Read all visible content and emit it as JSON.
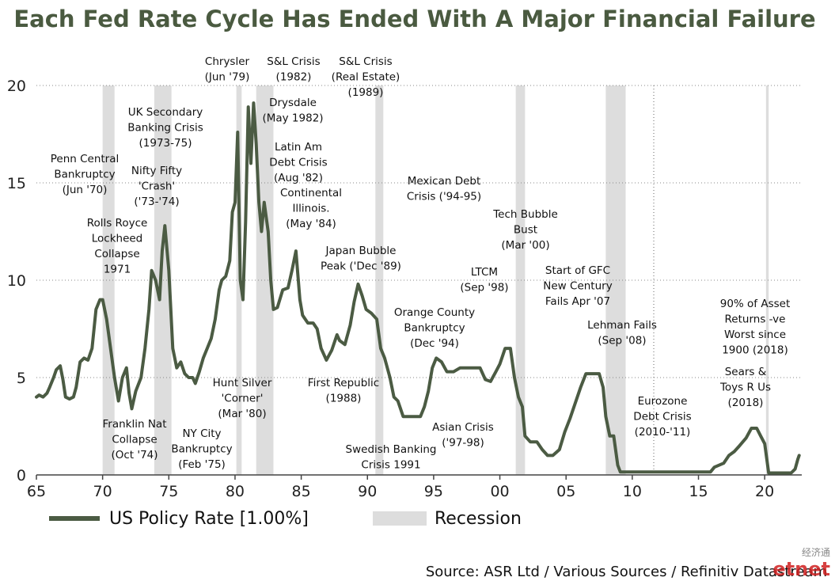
{
  "chart_data": {
    "type": "line",
    "title": "Each Fed Rate Cycle Has Ended With A Major Financial Failure",
    "ylim": [
      0,
      20
    ],
    "y_ticks": [
      "0",
      "5",
      "10",
      "15",
      "20"
    ],
    "xlim": [
      1965,
      2022.8
    ],
    "x_ticks": [
      {
        "label": "65",
        "x": 1965
      },
      {
        "label": "70",
        "x": 1970
      },
      {
        "label": "75",
        "x": 1975
      },
      {
        "label": "80",
        "x": 1980
      },
      {
        "label": "85",
        "x": 1985
      },
      {
        "label": "90",
        "x": 1990
      },
      {
        "label": "95",
        "x": 1995
      },
      {
        "label": "00",
        "x": 2000
      },
      {
        "label": "05",
        "x": 2005
      },
      {
        "label": "10",
        "x": 2010
      },
      {
        "label": "15",
        "x": 2015
      },
      {
        "label": "20",
        "x": 2020
      }
    ],
    "grid": "horizontal dotted",
    "line_color": "#4b5b43",
    "recession_color": "#dddddd",
    "series": [
      {
        "name": "US Policy Rate [1.00%]",
        "points": [
          [
            1965.0,
            4.0
          ],
          [
            1965.2,
            4.1
          ],
          [
            1965.5,
            4.0
          ],
          [
            1965.8,
            4.2
          ],
          [
            1966.0,
            4.5
          ],
          [
            1966.3,
            5.0
          ],
          [
            1966.5,
            5.4
          ],
          [
            1966.8,
            5.6
          ],
          [
            1967.0,
            4.9
          ],
          [
            1967.2,
            4.0
          ],
          [
            1967.5,
            3.9
          ],
          [
            1967.8,
            4.0
          ],
          [
            1968.0,
            4.5
          ],
          [
            1968.3,
            5.8
          ],
          [
            1968.6,
            6.0
          ],
          [
            1968.9,
            5.9
          ],
          [
            1969.2,
            6.5
          ],
          [
            1969.5,
            8.5
          ],
          [
            1969.8,
            9.0
          ],
          [
            1970.0,
            9.0
          ],
          [
            1970.3,
            8.0
          ],
          [
            1970.6,
            6.5
          ],
          [
            1970.9,
            5.0
          ],
          [
            1971.2,
            3.8
          ],
          [
            1971.5,
            5.0
          ],
          [
            1971.8,
            5.5
          ],
          [
            1972.0,
            4.2
          ],
          [
            1972.2,
            3.4
          ],
          [
            1972.5,
            4.3
          ],
          [
            1972.9,
            5.0
          ],
          [
            1973.2,
            6.5
          ],
          [
            1973.5,
            8.5
          ],
          [
            1973.7,
            10.5
          ],
          [
            1974.0,
            10.0
          ],
          [
            1974.3,
            9.0
          ],
          [
            1974.5,
            11.5
          ],
          [
            1974.7,
            12.8
          ],
          [
            1975.0,
            10.5
          ],
          [
            1975.3,
            6.5
          ],
          [
            1975.6,
            5.5
          ],
          [
            1975.9,
            5.8
          ],
          [
            1976.2,
            5.2
          ],
          [
            1976.5,
            5.0
          ],
          [
            1976.8,
            5.0
          ],
          [
            1977.0,
            4.7
          ],
          [
            1977.3,
            5.3
          ],
          [
            1977.6,
            6.0
          ],
          [
            1977.9,
            6.5
          ],
          [
            1978.2,
            7.0
          ],
          [
            1978.5,
            8.0
          ],
          [
            1978.8,
            9.5
          ],
          [
            1979.0,
            10.0
          ],
          [
            1979.3,
            10.2
          ],
          [
            1979.6,
            11.0
          ],
          [
            1979.8,
            13.5
          ],
          [
            1980.0,
            14.0
          ],
          [
            1980.2,
            17.6
          ],
          [
            1980.4,
            10.0
          ],
          [
            1980.6,
            9.0
          ],
          [
            1980.8,
            13.0
          ],
          [
            1981.0,
            18.9
          ],
          [
            1981.2,
            16.0
          ],
          [
            1981.4,
            19.1
          ],
          [
            1981.6,
            17.0
          ],
          [
            1981.8,
            14.0
          ],
          [
            1982.0,
            12.5
          ],
          [
            1982.2,
            14.0
          ],
          [
            1982.5,
            12.5
          ],
          [
            1982.7,
            10.0
          ],
          [
            1982.9,
            8.5
          ],
          [
            1983.2,
            8.6
          ],
          [
            1983.6,
            9.5
          ],
          [
            1984.0,
            9.6
          ],
          [
            1984.3,
            10.5
          ],
          [
            1984.6,
            11.5
          ],
          [
            1984.9,
            9.0
          ],
          [
            1985.1,
            8.2
          ],
          [
            1985.5,
            7.8
          ],
          [
            1985.9,
            7.8
          ],
          [
            1986.2,
            7.5
          ],
          [
            1986.5,
            6.5
          ],
          [
            1986.9,
            5.9
          ],
          [
            1987.3,
            6.4
          ],
          [
            1987.7,
            7.2
          ],
          [
            1987.9,
            6.9
          ],
          [
            1988.3,
            6.7
          ],
          [
            1988.7,
            7.7
          ],
          [
            1989.0,
            8.9
          ],
          [
            1989.3,
            9.8
          ],
          [
            1989.6,
            9.2
          ],
          [
            1989.9,
            8.5
          ],
          [
            1990.3,
            8.3
          ],
          [
            1990.7,
            8.0
          ],
          [
            1991.0,
            6.5
          ],
          [
            1991.3,
            6.0
          ],
          [
            1991.7,
            5.0
          ],
          [
            1992.0,
            4.0
          ],
          [
            1992.3,
            3.8
          ],
          [
            1992.7,
            3.0
          ],
          [
            1993.0,
            3.0
          ],
          [
            1993.5,
            3.0
          ],
          [
            1994.0,
            3.0
          ],
          [
            1994.3,
            3.5
          ],
          [
            1994.6,
            4.3
          ],
          [
            1994.9,
            5.5
          ],
          [
            1995.2,
            6.0
          ],
          [
            1995.6,
            5.8
          ],
          [
            1996.0,
            5.3
          ],
          [
            1996.5,
            5.3
          ],
          [
            1997.0,
            5.5
          ],
          [
            1997.5,
            5.5
          ],
          [
            1998.0,
            5.5
          ],
          [
            1998.5,
            5.5
          ],
          [
            1998.9,
            4.9
          ],
          [
            1999.3,
            4.8
          ],
          [
            1999.7,
            5.3
          ],
          [
            2000.0,
            5.7
          ],
          [
            2000.4,
            6.5
          ],
          [
            2000.8,
            6.5
          ],
          [
            2001.1,
            5.0
          ],
          [
            2001.4,
            4.0
          ],
          [
            2001.7,
            3.5
          ],
          [
            2001.9,
            2.0
          ],
          [
            2002.3,
            1.7
          ],
          [
            2002.8,
            1.7
          ],
          [
            2003.2,
            1.3
          ],
          [
            2003.6,
            1.0
          ],
          [
            2004.0,
            1.0
          ],
          [
            2004.5,
            1.3
          ],
          [
            2004.9,
            2.2
          ],
          [
            2005.3,
            2.9
          ],
          [
            2005.7,
            3.7
          ],
          [
            2006.1,
            4.5
          ],
          [
            2006.5,
            5.2
          ],
          [
            2007.0,
            5.2
          ],
          [
            2007.5,
            5.2
          ],
          [
            2007.8,
            4.5
          ],
          [
            2008.0,
            3.0
          ],
          [
            2008.3,
            2.0
          ],
          [
            2008.6,
            2.0
          ],
          [
            2008.9,
            0.5
          ],
          [
            2009.1,
            0.15
          ],
          [
            2010.0,
            0.15
          ],
          [
            2012.0,
            0.15
          ],
          [
            2014.0,
            0.15
          ],
          [
            2015.9,
            0.15
          ],
          [
            2016.2,
            0.4
          ],
          [
            2016.9,
            0.6
          ],
          [
            2017.3,
            1.0
          ],
          [
            2017.7,
            1.2
          ],
          [
            2018.1,
            1.5
          ],
          [
            2018.6,
            1.9
          ],
          [
            2019.0,
            2.4
          ],
          [
            2019.4,
            2.4
          ],
          [
            2019.7,
            2.0
          ],
          [
            2020.0,
            1.6
          ],
          [
            2020.3,
            0.1
          ],
          [
            2021.0,
            0.1
          ],
          [
            2022.0,
            0.1
          ],
          [
            2022.3,
            0.3
          ],
          [
            2022.5,
            0.8
          ],
          [
            2022.6,
            1.0
          ]
        ]
      }
    ],
    "recessions": [
      [
        1970.0,
        1970.9
      ],
      [
        1973.9,
        1975.2
      ],
      [
        1980.1,
        1980.5
      ],
      [
        1981.6,
        1982.9
      ],
      [
        1990.6,
        1991.2
      ],
      [
        2001.2,
        2001.9
      ],
      [
        2008.0,
        2009.5
      ],
      [
        2020.1,
        2020.3
      ]
    ],
    "legend": {
      "line_label": "US Policy Rate [1.00%]",
      "recession_label": "Recession",
      "placement": "bottom-left"
    },
    "annotations": [
      {
        "lines": [
          "Chrysler",
          "(Jun '79)"
        ]
      },
      {
        "lines": [
          "S&L Crisis",
          "(1982)"
        ]
      },
      {
        "lines": [
          "S&L Crisis",
          "(Real Estate)",
          "(1989)"
        ]
      },
      {
        "lines": [
          "UK Secondary",
          "Banking Crisis",
          "(1973-75)"
        ]
      },
      {
        "lines": [
          "Drysdale",
          "(May 1982)"
        ]
      },
      {
        "lines": [
          "Penn Central",
          "Bankruptcy",
          "(Jun '70)"
        ]
      },
      {
        "lines": [
          "Nifty Fifty",
          "'Crash'",
          "('73-'74)"
        ]
      },
      {
        "lines": [
          "Latin Am",
          "Debt Crisis",
          "(Aug '82)"
        ]
      },
      {
        "lines": [
          "Continental",
          "Illinois.",
          "(May '84)"
        ]
      },
      {
        "lines": [
          "Mexican Debt",
          "Crisis ('94-95)"
        ]
      },
      {
        "lines": [
          "Tech Bubble",
          "Bust",
          "(Mar '00)"
        ]
      },
      {
        "lines": [
          "Rolls Royce",
          "Lockheed",
          "Collapse",
          "1971"
        ]
      },
      {
        "lines": [
          "Japan Bubble",
          "Peak ('Dec '89)"
        ]
      },
      {
        "lines": [
          "LTCM",
          "(Sep '98)"
        ]
      },
      {
        "lines": [
          "Start of GFC",
          "New Century",
          "Fails Apr '07"
        ]
      },
      {
        "lines": [
          "90% of Asset",
          "Returns -ve",
          "Worst since",
          "1900 (2018)"
        ]
      },
      {
        "lines": [
          "Orange County",
          "Bankruptcy",
          "(Dec '94)"
        ]
      },
      {
        "lines": [
          "Lehman Fails",
          "(Sep '08)"
        ]
      },
      {
        "lines": [
          "Sears &",
          "Toys R Us",
          "(2018)"
        ]
      },
      {
        "lines": [
          "Hunt Silver",
          "'Corner'",
          "(Mar '80)"
        ]
      },
      {
        "lines": [
          "First Republic",
          "(1988)"
        ]
      },
      {
        "lines": [
          "Eurozone",
          "Debt Crisis",
          "(2010-'11)"
        ]
      },
      {
        "lines": [
          "Franklin Nat",
          "Collapse",
          "(Oct '74)"
        ]
      },
      {
        "lines": [
          "NY City",
          "Bankruptcy",
          "(Feb '75)"
        ]
      },
      {
        "lines": [
          "Asian Crisis",
          "('97-98)"
        ]
      },
      {
        "lines": [
          "Swedish Banking",
          "Crisis 1991"
        ]
      }
    ]
  },
  "source": "Source: ASR Ltd / Various Sources / Refinitiv Datastream",
  "watermark": {
    "top": "经济通",
    "bottom": "etnet"
  }
}
